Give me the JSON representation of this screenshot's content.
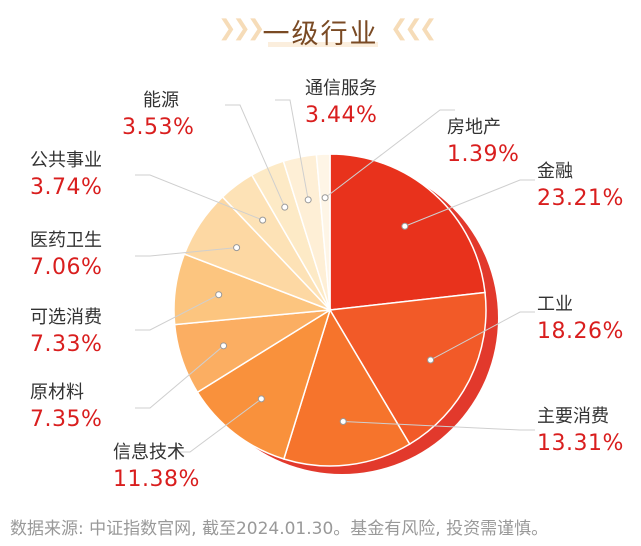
{
  "chart_data": {
    "type": "pie",
    "title": "一级行业",
    "slices": [
      {
        "label": "金融",
        "value": 23.21,
        "display": "23.21%",
        "color": "#e8321c"
      },
      {
        "label": "工业",
        "value": 18.26,
        "display": "18.26%",
        "color": "#f25a28"
      },
      {
        "label": "主要消费",
        "value": 13.31,
        "display": "13.31%",
        "color": "#f6742c"
      },
      {
        "label": "信息技术",
        "value": 11.38,
        "display": "11.38%",
        "color": "#f9913c"
      },
      {
        "label": "原材料",
        "value": 7.35,
        "display": "7.35%",
        "color": "#fbae62"
      },
      {
        "label": "可选消费",
        "value": 7.33,
        "display": "7.33%",
        "color": "#fcc57f"
      },
      {
        "label": "医药卫生",
        "value": 7.06,
        "display": "7.06%",
        "color": "#fdd8a3"
      },
      {
        "label": "公共事业",
        "value": 3.74,
        "display": "3.74%",
        "color": "#fde2b6"
      },
      {
        "label": "能源",
        "value": 3.53,
        "display": "3.53%",
        "color": "#fdeac6"
      },
      {
        "label": "通信服务",
        "value": 3.44,
        "display": "3.44%",
        "color": "#feefd6"
      },
      {
        "label": "房地产",
        "value": 1.39,
        "display": "1.39%",
        "color": "#fef5e6"
      }
    ]
  },
  "footnote": "数据来源: 中证指数官网, 截至2024.01.30。基金有风险, 投资需谨慎。"
}
